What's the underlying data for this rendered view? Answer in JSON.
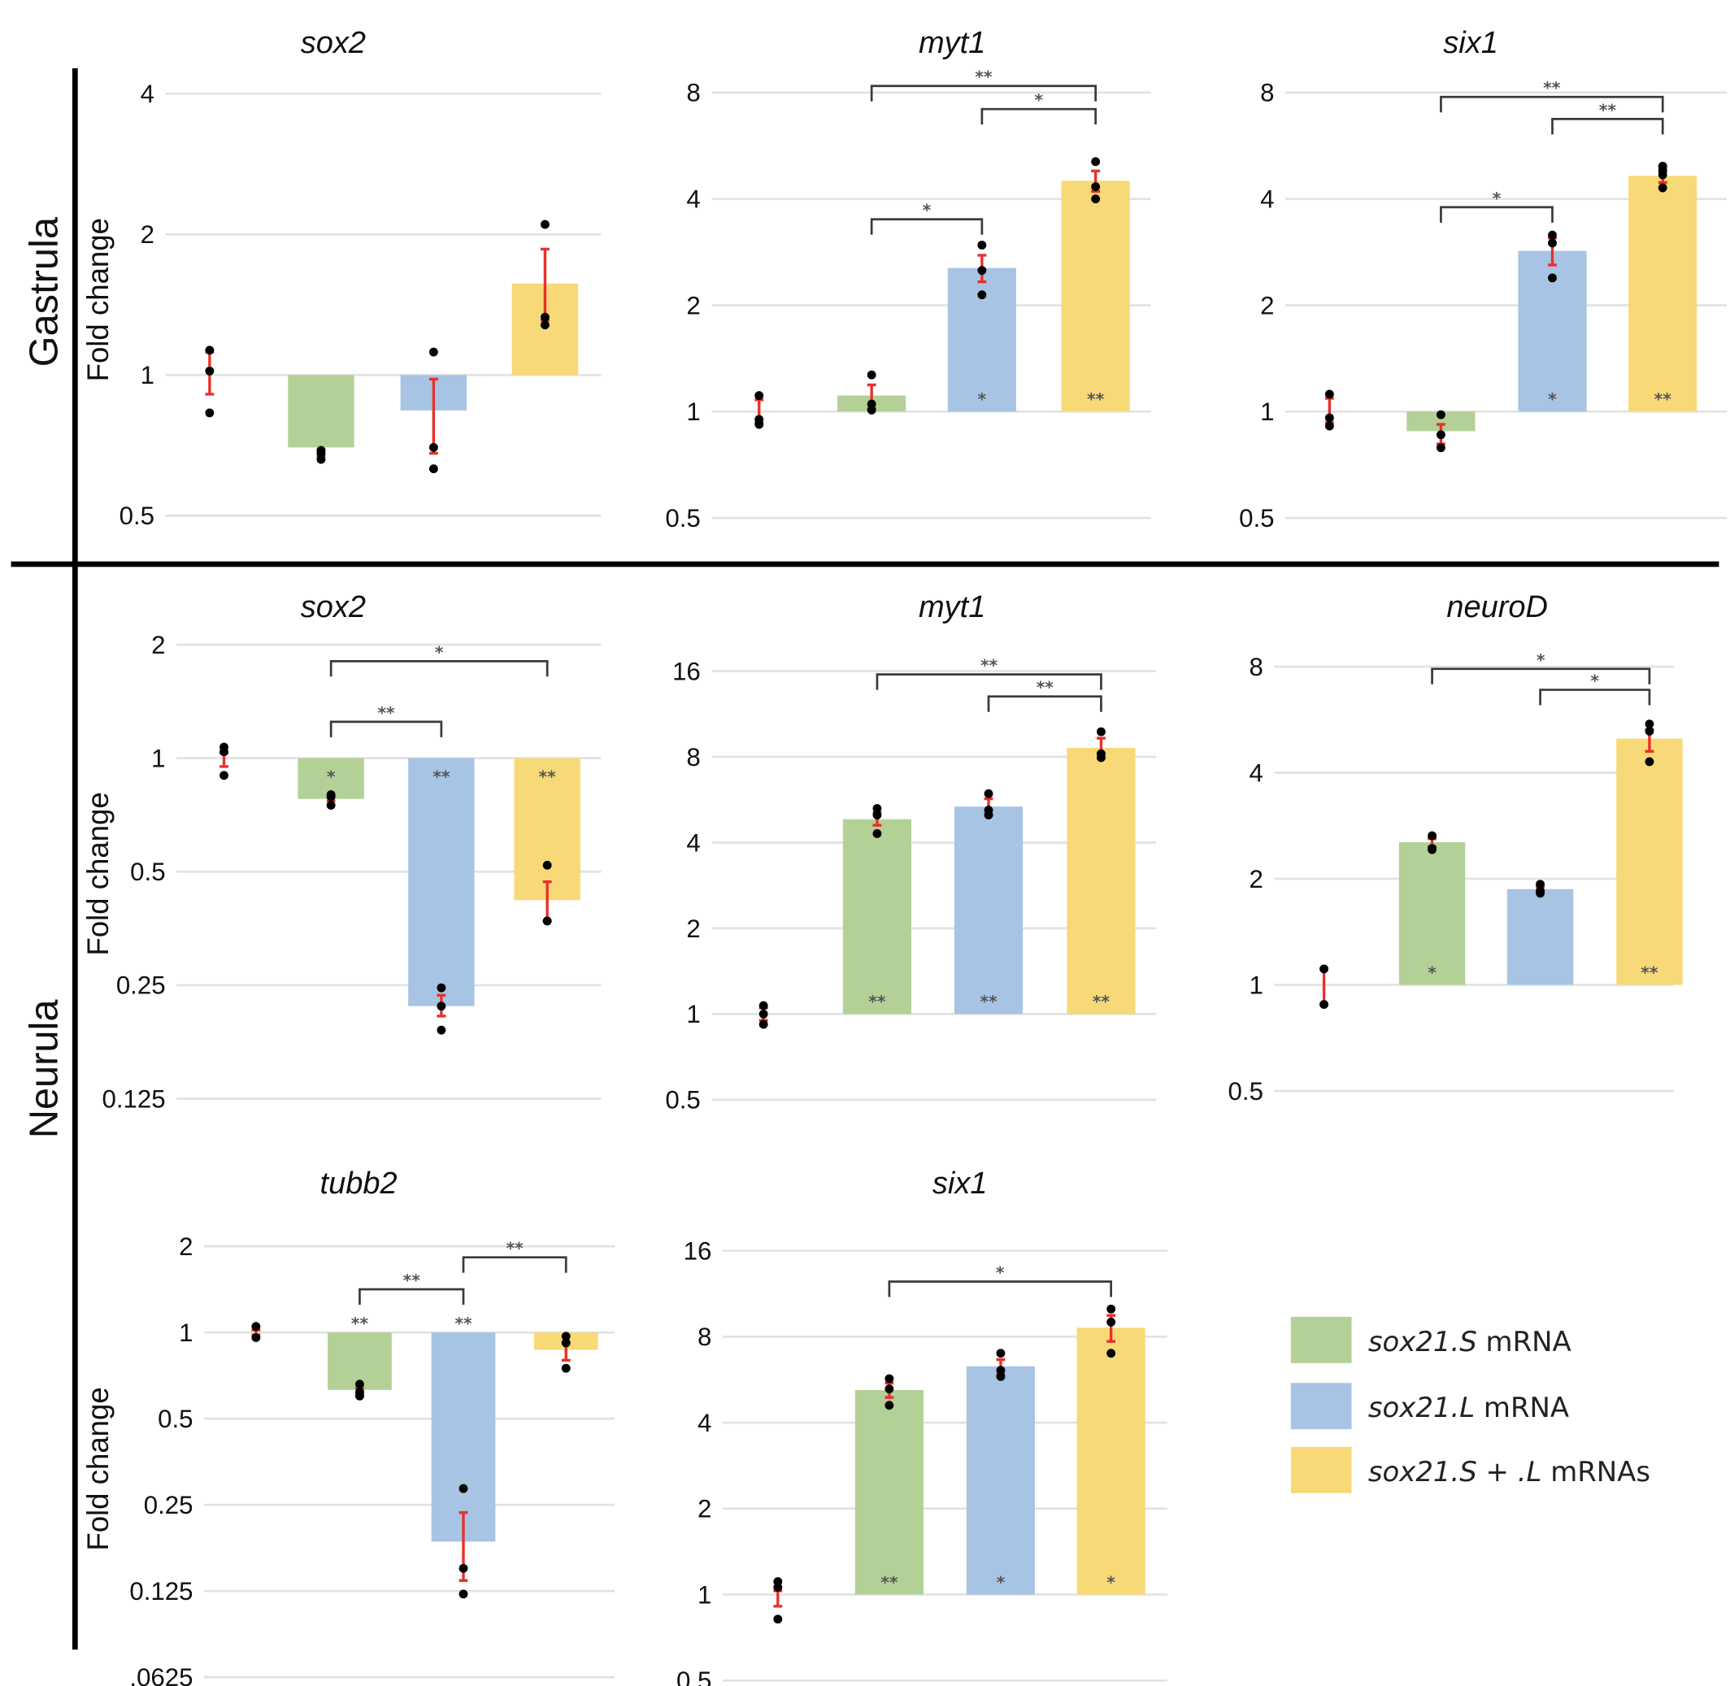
{
  "stages": {
    "gastrula": "Gastrula",
    "neurula": "Neurula"
  },
  "ylabel": "Fold change",
  "colors": {
    "sox21S": "#b3d197",
    "sox21L": "#a7c4e4",
    "sox21SL": "#f7d978",
    "error": "#e8312a",
    "grid": "#e2e2e2",
    "bracket": "#3a3a3a",
    "point": "#000000"
  },
  "legend": [
    {
      "italic": "sox21.S",
      "rest": " mRNA",
      "color": "#b3d197"
    },
    {
      "italic": "sox21.L",
      "rest": " mRNA",
      "color": "#a7c4e4"
    },
    {
      "italic": "sox21.S + .L",
      "rest": " mRNAs",
      "color": "#f7d978"
    }
  ],
  "chart_data": [
    {
      "type": "bar",
      "stage": "Gastrula",
      "title": "sox2",
      "yscale": "log2",
      "yticks": [
        "4",
        "2",
        "1",
        "0.5"
      ],
      "ylim": [
        0.5,
        4
      ],
      "grid": true,
      "groups": [
        {
          "bar": false,
          "value": 1,
          "points": [
            1.13,
            1.02,
            0.83
          ],
          "error": [
            0.91,
            1.12
          ],
          "mark": ""
        },
        {
          "bar": true,
          "value": 0.7,
          "points": [
            0.69,
            0.68,
            0.66
          ],
          "error": [
            0.67,
            0.69
          ],
          "mark": ""
        },
        {
          "bar": true,
          "value": 0.84,
          "points": [
            1.12,
            0.7,
            0.63
          ],
          "error": [
            0.68,
            0.98
          ],
          "mark": ""
        },
        {
          "bar": true,
          "value": 1.57,
          "points": [
            2.1,
            1.33,
            1.28
          ],
          "error": [
            1.31,
            1.86
          ],
          "mark": ""
        }
      ],
      "comparisons": []
    },
    {
      "type": "bar",
      "stage": "Gastrula",
      "title": "myt1",
      "yscale": "log2",
      "yticks": [
        "8",
        "4",
        "2",
        "1",
        "0.5"
      ],
      "ylim": [
        0.5,
        8
      ],
      "grid": true,
      "groups": [
        {
          "bar": false,
          "value": 1,
          "points": [
            1.11,
            0.95,
            0.92
          ],
          "error": [
            0.93,
            1.08
          ],
          "mark": ""
        },
        {
          "bar": true,
          "value": 1.11,
          "points": [
            1.27,
            1.05,
            1.01
          ],
          "error": [
            1.02,
            1.19
          ],
          "mark": ""
        },
        {
          "bar": true,
          "value": 2.55,
          "points": [
            2.96,
            2.51,
            2.14
          ],
          "error": [
            2.33,
            2.77
          ],
          "mark": "*"
        },
        {
          "bar": true,
          "value": 4.5,
          "points": [
            5.1,
            4.33,
            4.0
          ],
          "error": [
            4.2,
            4.8
          ],
          "mark": "**"
        }
      ],
      "comparisons": [
        {
          "from": 1,
          "to": 3,
          "label": "**"
        },
        {
          "from": 2,
          "to": 3,
          "label": "*"
        },
        {
          "from": 1,
          "to": 2,
          "label": "*"
        }
      ]
    },
    {
      "type": "bar",
      "stage": "Gastrula",
      "title": "six1",
      "yscale": "log2",
      "yticks": [
        "8",
        "4",
        "2",
        "1",
        "0.5"
      ],
      "ylim": [
        0.5,
        8
      ],
      "grid": true,
      "groups": [
        {
          "bar": false,
          "value": 1,
          "points": [
            1.12,
            0.96,
            0.91
          ],
          "error": [
            0.93,
            1.09
          ],
          "mark": ""
        },
        {
          "bar": true,
          "value": 0.88,
          "points": [
            0.98,
            0.86,
            0.79
          ],
          "error": [
            0.81,
            0.92
          ],
          "mark": ""
        },
        {
          "bar": true,
          "value": 2.85,
          "points": [
            3.16,
            3.0,
            2.39
          ],
          "error": [
            2.6,
            3.1
          ],
          "mark": "*"
        },
        {
          "bar": true,
          "value": 4.65,
          "points": [
            4.95,
            4.8,
            4.68,
            4.3
          ],
          "error": [
            4.45,
            4.9
          ],
          "mark": "**"
        }
      ],
      "comparisons": [
        {
          "from": 1,
          "to": 3,
          "label": "**"
        },
        {
          "from": 2,
          "to": 3,
          "label": "**"
        },
        {
          "from": 1,
          "to": 2,
          "label": "*"
        }
      ]
    },
    {
      "type": "bar",
      "stage": "Neurula",
      "title": "sox2",
      "yscale": "log2",
      "yticks": [
        "2",
        "1",
        "0.5",
        "0.25",
        "0.125"
      ],
      "ylim": [
        0.125,
        2
      ],
      "grid": true,
      "groups": [
        {
          "bar": false,
          "value": 1,
          "points": [
            1.07,
            1.04,
            0.9
          ],
          "error": [
            0.95,
            1.03
          ],
          "mark": ""
        },
        {
          "bar": true,
          "value": 0.78,
          "points": [
            0.8,
            0.79,
            0.75
          ],
          "error": [
            0.77,
            0.79
          ],
          "mark": "*"
        },
        {
          "bar": true,
          "value": 0.22,
          "points": [
            0.246,
            0.22,
            0.19
          ],
          "error": [
            0.207,
            0.235
          ],
          "mark": "**"
        },
        {
          "bar": true,
          "value": 0.42,
          "points": [
            0.52,
            0.37,
            0.37
          ],
          "error": [
            0.37,
            0.47
          ],
          "mark": "**"
        }
      ],
      "comparisons": [
        {
          "from": 1,
          "to": 3,
          "label": "*"
        },
        {
          "from": 1,
          "to": 2,
          "label": "**"
        }
      ]
    },
    {
      "type": "bar",
      "stage": "Neurula",
      "title": "myt1",
      "yscale": "log2",
      "yticks": [
        "16",
        "8",
        "4",
        "2",
        "1",
        "0.5"
      ],
      "ylim": [
        0.5,
        16
      ],
      "grid": true,
      "groups": [
        {
          "bar": false,
          "value": 1,
          "points": [
            1.07,
            1.0,
            0.92
          ],
          "error": [
            0.95,
            1.05
          ],
          "mark": ""
        },
        {
          "bar": true,
          "value": 4.83,
          "points": [
            5.27,
            5.0,
            4.3
          ],
          "error": [
            4.6,
            5.1
          ],
          "mark": "**"
        },
        {
          "bar": true,
          "value": 5.35,
          "points": [
            5.94,
            5.2,
            5.0
          ],
          "error": [
            5.0,
            5.7
          ],
          "mark": "**"
        },
        {
          "bar": true,
          "value": 8.6,
          "points": [
            9.8,
            8.2,
            7.95
          ],
          "error": [
            8.2,
            9.3
          ],
          "mark": "**"
        }
      ],
      "comparisons": [
        {
          "from": 1,
          "to": 3,
          "label": "**"
        },
        {
          "from": 2,
          "to": 3,
          "label": "**"
        }
      ]
    },
    {
      "type": "bar",
      "stage": "Neurula",
      "title": "neuroD",
      "yscale": "log2",
      "yticks": [
        "8",
        "4",
        "2",
        "1",
        "0.5"
      ],
      "ylim": [
        0.5,
        8
      ],
      "grid": true,
      "groups": [
        {
          "bar": false,
          "value": 1,
          "points": [
            1.11,
            0.88
          ],
          "error": [
            0.88,
            1.11
          ],
          "mark": ""
        },
        {
          "bar": true,
          "value": 2.54,
          "points": [
            2.65,
            2.44,
            2.42
          ],
          "error": [
            2.47,
            2.6
          ],
          "mark": "*"
        },
        {
          "bar": true,
          "value": 1.87,
          "points": [
            1.93,
            1.85,
            1.82
          ],
          "error": [
            1.83,
            1.9
          ],
          "mark": ""
        },
        {
          "bar": true,
          "value": 5.0,
          "points": [
            5.5,
            5.25,
            4.3
          ],
          "error": [
            4.6,
            5.3
          ],
          "mark": "**"
        }
      ],
      "comparisons": [
        {
          "from": 1,
          "to": 3,
          "label": "*"
        },
        {
          "from": 2,
          "to": 3,
          "label": "*"
        }
      ]
    },
    {
      "type": "bar",
      "stage": "Neurula",
      "title": "tubb2",
      "yscale": "log2",
      "yticks": [
        "2",
        "1",
        "0.5",
        "0.25",
        "0.125",
        ".0625"
      ],
      "ylim": [
        0.0625,
        2
      ],
      "grid": true,
      "groups": [
        {
          "bar": false,
          "value": 1,
          "points": [
            1.05,
            0.96
          ],
          "error": [
            0.98,
            1.02
          ],
          "mark": ""
        },
        {
          "bar": true,
          "value": 0.63,
          "points": [
            0.66,
            0.62,
            0.6
          ],
          "error": [
            0.61,
            0.64
          ],
          "mark": "**"
        },
        {
          "bar": true,
          "value": 0.186,
          "points": [
            0.285,
            0.15,
            0.122
          ],
          "error": [
            0.136,
            0.235
          ],
          "mark": "**"
        },
        {
          "bar": true,
          "value": 0.87,
          "points": [
            0.97,
            0.92,
            0.75
          ],
          "error": [
            0.8,
            0.92
          ],
          "mark": ""
        }
      ],
      "comparisons": [
        {
          "from": 2,
          "to": 3,
          "label": "**"
        },
        {
          "from": 1,
          "to": 2,
          "label": "**"
        }
      ]
    },
    {
      "type": "bar",
      "stage": "Neurula",
      "title": "six1",
      "yscale": "log2",
      "yticks": [
        "16",
        "8",
        "4",
        "2",
        "1",
        "0.5"
      ],
      "ylim": [
        0.5,
        16
      ],
      "grid": true,
      "groups": [
        {
          "bar": false,
          "value": 1,
          "points": [
            1.11,
            1.06,
            0.82
          ],
          "error": [
            0.91,
            1.03
          ],
          "mark": ""
        },
        {
          "bar": true,
          "value": 5.2,
          "points": [
            5.7,
            5.25,
            4.6
          ],
          "error": [
            4.9,
            5.5
          ],
          "mark": "**"
        },
        {
          "bar": true,
          "value": 6.3,
          "points": [
            7.0,
            6.1,
            5.8
          ],
          "error": [
            5.9,
            6.65
          ],
          "mark": "*"
        },
        {
          "bar": true,
          "value": 8.6,
          "points": [
            10.0,
            9.0,
            7.0
          ],
          "error": [
            7.7,
            9.5
          ],
          "mark": "*"
        }
      ],
      "comparisons": [
        {
          "from": 1,
          "to": 3,
          "label": "*"
        }
      ]
    }
  ]
}
